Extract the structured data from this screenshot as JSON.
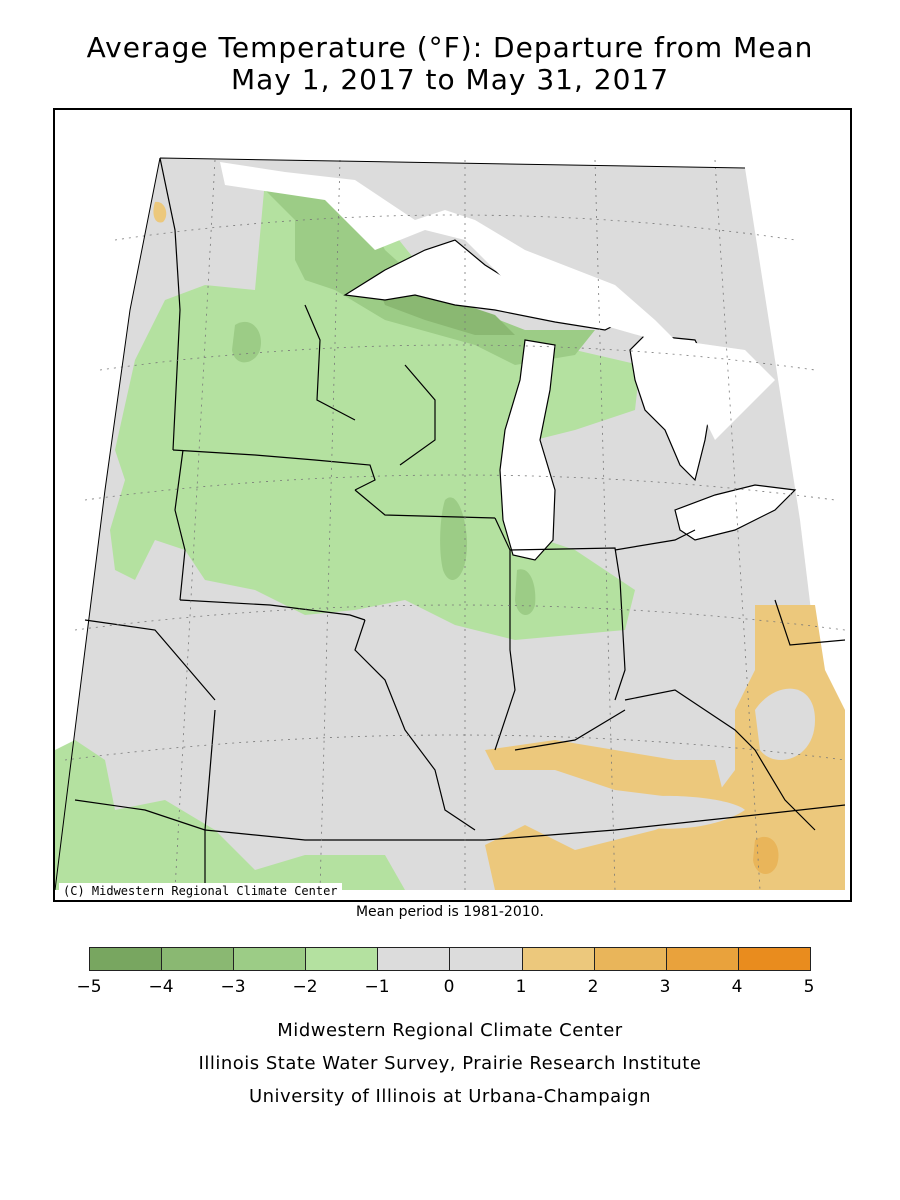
{
  "title": {
    "line1": "Average Temperature (°F): Departure from Mean",
    "line2": "May 1, 2017 to May 31, 2017"
  },
  "map": {
    "copyright": "(C) Midwestern Regional Climate Center",
    "regions": "Midwest United States — Minnesota, Wisconsin, Michigan, Iowa, Illinois, Indiana, Ohio, Missouri, Kentucky"
  },
  "mean_note": "Mean period is 1981-2010.",
  "legend": {
    "ticks": [
      "−5",
      "−4",
      "−3",
      "−2",
      "−1",
      "0",
      "1",
      "2",
      "3",
      "4",
      "5"
    ],
    "colors": [
      "#78a660",
      "#8ab872",
      "#9ccc86",
      "#b4e1a0",
      "#dcdcdc",
      "#dcdcdc",
      "#ecc87c",
      "#e9b55a",
      "#e9a23c",
      "#e98c1e"
    ]
  },
  "footer": {
    "line1": "Midwestern Regional Climate Center",
    "line2": "Illinois State Water Survey, Prairie Research Institute",
    "line3": "University of Illinois at Urbana-Champaign"
  }
}
